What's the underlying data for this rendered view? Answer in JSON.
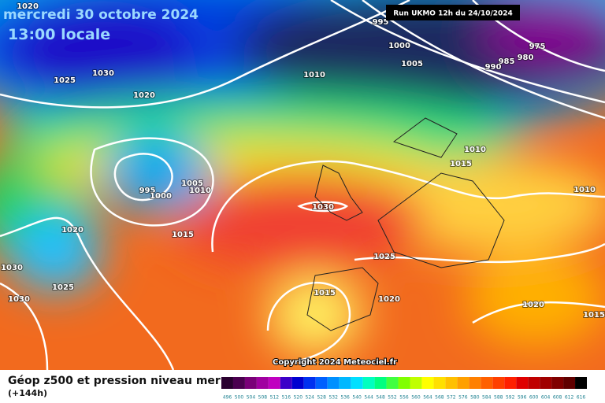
{
  "header": {
    "date": "mercredi 30 octobre 2024",
    "time": "13:00 locale",
    "run": "Run UKMO 12h du 24/10/2024"
  },
  "isobar_labels": [
    "1020",
    "995",
    "1000",
    "1005",
    "975",
    "980",
    "985",
    "990",
    "1010",
    "1025",
    "1030",
    "1020",
    "1010",
    "1015",
    "1010",
    "995",
    "1000",
    "1005",
    "1010",
    "1030",
    "1020",
    "1015",
    "1025",
    "1030",
    "1025",
    "1015",
    "1020",
    "1030",
    "1020",
    "1015"
  ],
  "copyright": "Copyright 2024 Meteociel.fr",
  "footer": {
    "title": "Géop z500 et pression niveau mer",
    "lead": "(+144h)"
  },
  "scale_labels": [
    "496",
    "500",
    "504",
    "508",
    "512",
    "516",
    "520",
    "524",
    "528",
    "532",
    "536",
    "540",
    "544",
    "548",
    "552",
    "556",
    "560",
    "564",
    "568",
    "572",
    "576",
    "580",
    "584",
    "588",
    "592",
    "596",
    "600",
    "604",
    "608",
    "612",
    "616"
  ]
}
